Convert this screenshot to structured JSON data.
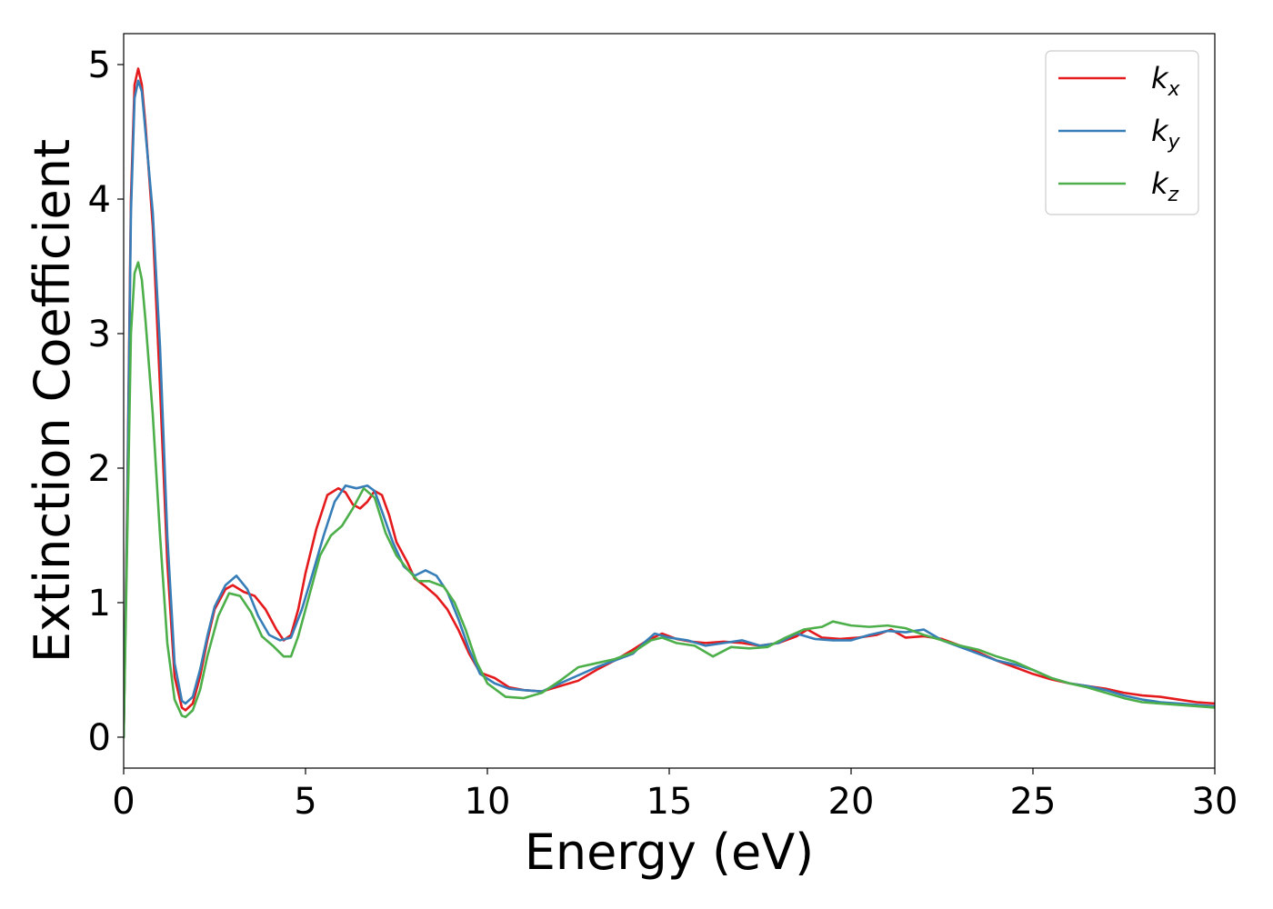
{
  "chart_data": {
    "type": "line",
    "title": "",
    "xlabel": "Energy (eV)",
    "ylabel": "Extinction Coefficient",
    "xlim": [
      0,
      30
    ],
    "ylim": [
      -0.23,
      5.23
    ],
    "xticks": [
      0,
      5,
      10,
      15,
      20,
      25,
      30
    ],
    "yticks": [
      0,
      1,
      2,
      3,
      4,
      5
    ],
    "grid": false,
    "legend": "top-right",
    "series": [
      {
        "name": "k_x",
        "label_main": "k",
        "label_sub": "x",
        "color": "#e41a1c",
        "points": [
          [
            0,
            0
          ],
          [
            0.1,
            1.8
          ],
          [
            0.2,
            4.0
          ],
          [
            0.3,
            4.85
          ],
          [
            0.4,
            4.97
          ],
          [
            0.5,
            4.85
          ],
          [
            0.6,
            4.55
          ],
          [
            0.8,
            3.8
          ],
          [
            1.0,
            2.6
          ],
          [
            1.2,
            1.3
          ],
          [
            1.4,
            0.45
          ],
          [
            1.6,
            0.22
          ],
          [
            1.7,
            0.2
          ],
          [
            1.9,
            0.25
          ],
          [
            2.1,
            0.45
          ],
          [
            2.3,
            0.72
          ],
          [
            2.5,
            0.95
          ],
          [
            2.8,
            1.1
          ],
          [
            3.0,
            1.13
          ],
          [
            3.3,
            1.08
          ],
          [
            3.6,
            1.05
          ],
          [
            3.9,
            0.95
          ],
          [
            4.2,
            0.8
          ],
          [
            4.4,
            0.72
          ],
          [
            4.6,
            0.76
          ],
          [
            4.8,
            0.95
          ],
          [
            5.0,
            1.22
          ],
          [
            5.3,
            1.55
          ],
          [
            5.6,
            1.8
          ],
          [
            5.9,
            1.85
          ],
          [
            6.1,
            1.82
          ],
          [
            6.3,
            1.73
          ],
          [
            6.5,
            1.7
          ],
          [
            6.7,
            1.75
          ],
          [
            6.9,
            1.83
          ],
          [
            7.1,
            1.8
          ],
          [
            7.3,
            1.65
          ],
          [
            7.5,
            1.45
          ],
          [
            7.8,
            1.3
          ],
          [
            8.0,
            1.18
          ],
          [
            8.3,
            1.12
          ],
          [
            8.6,
            1.05
          ],
          [
            8.9,
            0.95
          ],
          [
            9.2,
            0.8
          ],
          [
            9.5,
            0.62
          ],
          [
            9.8,
            0.48
          ],
          [
            10.2,
            0.44
          ],
          [
            10.6,
            0.37
          ],
          [
            11.0,
            0.35
          ],
          [
            11.5,
            0.34
          ],
          [
            12.0,
            0.38
          ],
          [
            12.5,
            0.42
          ],
          [
            13.0,
            0.5
          ],
          [
            13.5,
            0.57
          ],
          [
            14.0,
            0.65
          ],
          [
            14.4,
            0.72
          ],
          [
            14.8,
            0.77
          ],
          [
            15.2,
            0.73
          ],
          [
            15.6,
            0.71
          ],
          [
            16.0,
            0.7
          ],
          [
            16.5,
            0.71
          ],
          [
            17.0,
            0.7
          ],
          [
            17.5,
            0.68
          ],
          [
            18.0,
            0.7
          ],
          [
            18.5,
            0.75
          ],
          [
            18.8,
            0.8
          ],
          [
            19.2,
            0.74
          ],
          [
            19.7,
            0.73
          ],
          [
            20.2,
            0.74
          ],
          [
            20.7,
            0.76
          ],
          [
            21.1,
            0.8
          ],
          [
            21.5,
            0.74
          ],
          [
            22.0,
            0.75
          ],
          [
            22.5,
            0.73
          ],
          [
            23.0,
            0.68
          ],
          [
            23.5,
            0.63
          ],
          [
            24.0,
            0.57
          ],
          [
            24.5,
            0.52
          ],
          [
            25.0,
            0.47
          ],
          [
            25.5,
            0.43
          ],
          [
            26.0,
            0.4
          ],
          [
            26.5,
            0.38
          ],
          [
            27.0,
            0.36
          ],
          [
            27.5,
            0.33
          ],
          [
            28.0,
            0.31
          ],
          [
            28.5,
            0.3
          ],
          [
            29.0,
            0.28
          ],
          [
            29.5,
            0.26
          ],
          [
            30.0,
            0.25
          ]
        ]
      },
      {
        "name": "k_y",
        "label_main": "k",
        "label_sub": "y",
        "color": "#377eb8",
        "points": [
          [
            0,
            0
          ],
          [
            0.1,
            1.7
          ],
          [
            0.2,
            3.9
          ],
          [
            0.3,
            4.75
          ],
          [
            0.4,
            4.88
          ],
          [
            0.5,
            4.8
          ],
          [
            0.6,
            4.5
          ],
          [
            0.8,
            3.9
          ],
          [
            1.0,
            2.9
          ],
          [
            1.2,
            1.5
          ],
          [
            1.4,
            0.55
          ],
          [
            1.6,
            0.27
          ],
          [
            1.7,
            0.25
          ],
          [
            1.9,
            0.3
          ],
          [
            2.1,
            0.5
          ],
          [
            2.3,
            0.75
          ],
          [
            2.5,
            0.97
          ],
          [
            2.8,
            1.13
          ],
          [
            3.1,
            1.2
          ],
          [
            3.4,
            1.1
          ],
          [
            3.7,
            0.9
          ],
          [
            4.0,
            0.76
          ],
          [
            4.3,
            0.72
          ],
          [
            4.6,
            0.74
          ],
          [
            4.9,
            0.95
          ],
          [
            5.2,
            1.22
          ],
          [
            5.5,
            1.5
          ],
          [
            5.8,
            1.75
          ],
          [
            6.1,
            1.87
          ],
          [
            6.4,
            1.85
          ],
          [
            6.7,
            1.87
          ],
          [
            6.9,
            1.83
          ],
          [
            7.1,
            1.68
          ],
          [
            7.4,
            1.45
          ],
          [
            7.7,
            1.27
          ],
          [
            8.0,
            1.2
          ],
          [
            8.3,
            1.24
          ],
          [
            8.6,
            1.2
          ],
          [
            8.9,
            1.08
          ],
          [
            9.2,
            0.88
          ],
          [
            9.5,
            0.65
          ],
          [
            9.8,
            0.47
          ],
          [
            10.2,
            0.4
          ],
          [
            10.6,
            0.36
          ],
          [
            11.0,
            0.35
          ],
          [
            11.5,
            0.34
          ],
          [
            12.0,
            0.4
          ],
          [
            12.5,
            0.46
          ],
          [
            13.0,
            0.52
          ],
          [
            13.5,
            0.57
          ],
          [
            14.0,
            0.62
          ],
          [
            14.3,
            0.7
          ],
          [
            14.6,
            0.77
          ],
          [
            15.0,
            0.74
          ],
          [
            15.5,
            0.72
          ],
          [
            16.0,
            0.68
          ],
          [
            16.5,
            0.7
          ],
          [
            17.0,
            0.72
          ],
          [
            17.5,
            0.68
          ],
          [
            18.0,
            0.7
          ],
          [
            18.5,
            0.77
          ],
          [
            19.0,
            0.73
          ],
          [
            19.5,
            0.72
          ],
          [
            20.0,
            0.72
          ],
          [
            20.5,
            0.76
          ],
          [
            21.0,
            0.79
          ],
          [
            21.5,
            0.78
          ],
          [
            22.0,
            0.8
          ],
          [
            22.5,
            0.72
          ],
          [
            23.0,
            0.67
          ],
          [
            23.5,
            0.62
          ],
          [
            24.0,
            0.57
          ],
          [
            24.5,
            0.54
          ],
          [
            25.0,
            0.5
          ],
          [
            25.5,
            0.44
          ],
          [
            26.0,
            0.4
          ],
          [
            26.5,
            0.38
          ],
          [
            27.0,
            0.35
          ],
          [
            27.5,
            0.31
          ],
          [
            28.0,
            0.28
          ],
          [
            28.5,
            0.26
          ],
          [
            29.0,
            0.25
          ],
          [
            29.5,
            0.24
          ],
          [
            30.0,
            0.23
          ]
        ]
      },
      {
        "name": "k_z",
        "label_main": "k",
        "label_sub": "z",
        "color": "#4daf4a",
        "points": [
          [
            0,
            0
          ],
          [
            0.1,
            1.5
          ],
          [
            0.2,
            3.0
          ],
          [
            0.3,
            3.45
          ],
          [
            0.4,
            3.53
          ],
          [
            0.5,
            3.4
          ],
          [
            0.6,
            3.1
          ],
          [
            0.8,
            2.4
          ],
          [
            1.0,
            1.5
          ],
          [
            1.2,
            0.7
          ],
          [
            1.4,
            0.28
          ],
          [
            1.6,
            0.16
          ],
          [
            1.7,
            0.15
          ],
          [
            1.9,
            0.2
          ],
          [
            2.1,
            0.35
          ],
          [
            2.3,
            0.6
          ],
          [
            2.6,
            0.9
          ],
          [
            2.9,
            1.07
          ],
          [
            3.2,
            1.05
          ],
          [
            3.5,
            0.93
          ],
          [
            3.8,
            0.75
          ],
          [
            4.1,
            0.68
          ],
          [
            4.4,
            0.6
          ],
          [
            4.6,
            0.6
          ],
          [
            4.8,
            0.75
          ],
          [
            5.1,
            1.05
          ],
          [
            5.4,
            1.35
          ],
          [
            5.7,
            1.5
          ],
          [
            6.0,
            1.57
          ],
          [
            6.3,
            1.7
          ],
          [
            6.6,
            1.85
          ],
          [
            6.9,
            1.78
          ],
          [
            7.2,
            1.52
          ],
          [
            7.5,
            1.35
          ],
          [
            7.8,
            1.25
          ],
          [
            8.1,
            1.16
          ],
          [
            8.4,
            1.16
          ],
          [
            8.8,
            1.12
          ],
          [
            9.1,
            1.0
          ],
          [
            9.4,
            0.8
          ],
          [
            9.7,
            0.56
          ],
          [
            10.0,
            0.4
          ],
          [
            10.5,
            0.3
          ],
          [
            11.0,
            0.29
          ],
          [
            11.5,
            0.33
          ],
          [
            12.0,
            0.42
          ],
          [
            12.5,
            0.52
          ],
          [
            13.0,
            0.55
          ],
          [
            13.5,
            0.58
          ],
          [
            14.0,
            0.63
          ],
          [
            14.5,
            0.72
          ],
          [
            14.8,
            0.74
          ],
          [
            15.2,
            0.7
          ],
          [
            15.7,
            0.68
          ],
          [
            16.2,
            0.6
          ],
          [
            16.7,
            0.67
          ],
          [
            17.2,
            0.66
          ],
          [
            17.7,
            0.67
          ],
          [
            18.2,
            0.74
          ],
          [
            18.7,
            0.8
          ],
          [
            19.2,
            0.82
          ],
          [
            19.5,
            0.86
          ],
          [
            20.0,
            0.83
          ],
          [
            20.5,
            0.82
          ],
          [
            21.0,
            0.83
          ],
          [
            21.5,
            0.81
          ],
          [
            22.0,
            0.76
          ],
          [
            22.5,
            0.72
          ],
          [
            23.0,
            0.68
          ],
          [
            23.5,
            0.65
          ],
          [
            24.0,
            0.6
          ],
          [
            24.5,
            0.56
          ],
          [
            25.0,
            0.5
          ],
          [
            25.5,
            0.44
          ],
          [
            26.0,
            0.4
          ],
          [
            26.5,
            0.37
          ],
          [
            27.0,
            0.33
          ],
          [
            27.5,
            0.29
          ],
          [
            28.0,
            0.26
          ],
          [
            28.5,
            0.25
          ],
          [
            29.0,
            0.24
          ],
          [
            29.5,
            0.23
          ],
          [
            30.0,
            0.22
          ]
        ]
      }
    ]
  }
}
